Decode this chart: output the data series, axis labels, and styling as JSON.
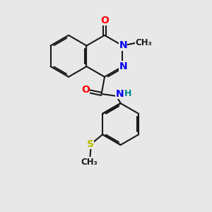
{
  "bg": "#e8e8e8",
  "bond_color": "#1a1a1a",
  "bw": 1.5,
  "dbo": 0.07,
  "colors": {
    "O": "#ff0000",
    "N": "#0000ee",
    "S": "#bbbb00",
    "H": "#008888",
    "C": "#1a1a1a"
  },
  "bl": 1.0
}
